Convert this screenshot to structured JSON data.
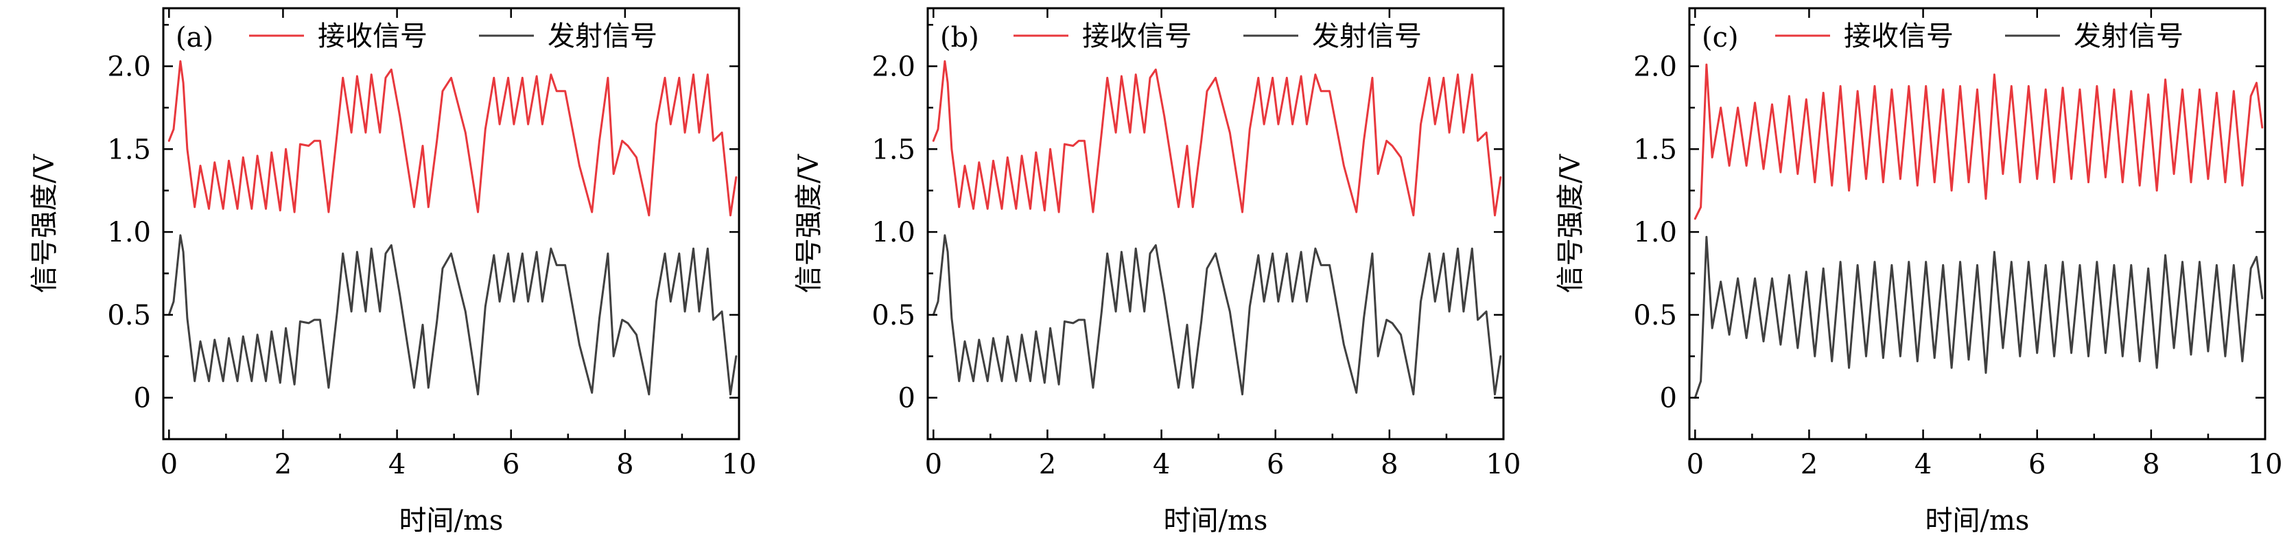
{
  "x_axis_label": "时间/ms",
  "y_axis_label": "信号强度/V",
  "legend": {
    "received": "接收信号",
    "transmitted": "发射信号"
  },
  "colors": {
    "received": "#e8383d",
    "transmitted": "#404040"
  },
  "chart_data": [
    {
      "type": "line",
      "panel_label": "(a)",
      "xlim": [
        -0.1,
        10
      ],
      "ylim": [
        -0.25,
        2.35
      ],
      "x_ticks": [
        "0",
        "2",
        "4",
        "6",
        "8",
        "10"
      ],
      "y_ticks": [
        "0",
        "0.5",
        "1.0",
        "1.5",
        "2.0"
      ],
      "legend_position": "top",
      "series": [
        {
          "name": "接收信号",
          "x": [
            0,
            0.08,
            0.2,
            0.25,
            0.32,
            0.45,
            0.55,
            0.7,
            0.8,
            0.95,
            1.05,
            1.2,
            1.3,
            1.45,
            1.55,
            1.7,
            1.8,
            1.95,
            2.05,
            2.2,
            2.3,
            2.45,
            2.55,
            2.65,
            2.8,
            2.95,
            3.05,
            3.2,
            3.3,
            3.45,
            3.55,
            3.7,
            3.8,
            3.9,
            4.05,
            4.3,
            4.45,
            4.55,
            4.7,
            4.8,
            4.95,
            5.2,
            5.42,
            5.55,
            5.7,
            5.8,
            5.95,
            6.05,
            6.2,
            6.3,
            6.45,
            6.55,
            6.7,
            6.8,
            6.95,
            7.2,
            7.42,
            7.55,
            7.7,
            7.8,
            7.95,
            8.05,
            8.2,
            8.42,
            8.55,
            8.7,
            8.8,
            8.95,
            9.05,
            9.2,
            9.3,
            9.45,
            9.55,
            9.7,
            9.85,
            9.95
          ],
          "values": [
            1.55,
            1.62,
            2.03,
            1.9,
            1.5,
            1.15,
            1.4,
            1.14,
            1.42,
            1.14,
            1.43,
            1.14,
            1.45,
            1.14,
            1.46,
            1.14,
            1.48,
            1.13,
            1.5,
            1.12,
            1.53,
            1.52,
            1.55,
            1.55,
            1.12,
            1.6,
            1.93,
            1.6,
            1.94,
            1.6,
            1.95,
            1.6,
            1.93,
            1.98,
            1.7,
            1.15,
            1.52,
            1.15,
            1.55,
            1.85,
            1.93,
            1.6,
            1.12,
            1.62,
            1.93,
            1.65,
            1.93,
            1.65,
            1.93,
            1.65,
            1.94,
            1.65,
            1.95,
            1.85,
            1.85,
            1.4,
            1.12,
            1.55,
            1.93,
            1.35,
            1.55,
            1.52,
            1.45,
            1.1,
            1.65,
            1.93,
            1.65,
            1.93,
            1.6,
            1.95,
            1.6,
            1.95,
            1.55,
            1.6,
            1.1,
            1.33
          ]
        },
        {
          "name": "发射信号",
          "x": [
            0,
            0.08,
            0.2,
            0.25,
            0.32,
            0.45,
            0.55,
            0.7,
            0.8,
            0.95,
            1.05,
            1.2,
            1.3,
            1.45,
            1.55,
            1.7,
            1.8,
            1.95,
            2.05,
            2.2,
            2.3,
            2.45,
            2.55,
            2.65,
            2.8,
            2.95,
            3.05,
            3.2,
            3.3,
            3.45,
            3.55,
            3.7,
            3.8,
            3.9,
            4.05,
            4.3,
            4.45,
            4.55,
            4.7,
            4.8,
            4.95,
            5.2,
            5.42,
            5.55,
            5.7,
            5.8,
            5.95,
            6.05,
            6.2,
            6.3,
            6.45,
            6.55,
            6.7,
            6.8,
            6.95,
            7.2,
            7.42,
            7.55,
            7.7,
            7.8,
            7.95,
            8.05,
            8.2,
            8.42,
            8.55,
            8.7,
            8.8,
            8.95,
            9.05,
            9.2,
            9.3,
            9.45,
            9.55,
            9.7,
            9.85,
            9.95
          ],
          "values": [
            0.5,
            0.58,
            0.98,
            0.88,
            0.48,
            0.1,
            0.34,
            0.1,
            0.35,
            0.1,
            0.36,
            0.1,
            0.37,
            0.1,
            0.38,
            0.1,
            0.4,
            0.09,
            0.42,
            0.08,
            0.46,
            0.45,
            0.47,
            0.47,
            0.06,
            0.52,
            0.87,
            0.52,
            0.88,
            0.52,
            0.9,
            0.52,
            0.87,
            0.92,
            0.62,
            0.06,
            0.44,
            0.06,
            0.46,
            0.78,
            0.87,
            0.52,
            0.02,
            0.55,
            0.86,
            0.58,
            0.87,
            0.58,
            0.87,
            0.58,
            0.88,
            0.58,
            0.9,
            0.8,
            0.8,
            0.32,
            0.03,
            0.48,
            0.87,
            0.25,
            0.47,
            0.45,
            0.38,
            0.02,
            0.58,
            0.87,
            0.58,
            0.87,
            0.52,
            0.9,
            0.52,
            0.9,
            0.47,
            0.52,
            0.02,
            0.25
          ]
        }
      ]
    },
    {
      "type": "line",
      "panel_label": "(b)",
      "xlim": [
        -0.1,
        10
      ],
      "ylim": [
        -0.25,
        2.35
      ],
      "x_ticks": [
        "0",
        "2",
        "4",
        "6",
        "8",
        "10"
      ],
      "y_ticks": [
        "0",
        "0.5",
        "1.0",
        "1.5",
        "2.0"
      ],
      "legend_position": "top",
      "series": [
        {
          "name": "接收信号",
          "x": [
            0,
            0.08,
            0.2,
            0.25,
            0.32,
            0.45,
            0.55,
            0.7,
            0.8,
            0.95,
            1.05,
            1.2,
            1.3,
            1.45,
            1.55,
            1.7,
            1.8,
            1.95,
            2.05,
            2.2,
            2.3,
            2.45,
            2.55,
            2.65,
            2.8,
            2.95,
            3.05,
            3.2,
            3.3,
            3.45,
            3.55,
            3.7,
            3.8,
            3.9,
            4.05,
            4.3,
            4.45,
            4.55,
            4.7,
            4.8,
            4.95,
            5.2,
            5.42,
            5.55,
            5.7,
            5.8,
            5.95,
            6.05,
            6.2,
            6.3,
            6.45,
            6.55,
            6.7,
            6.8,
            6.95,
            7.2,
            7.42,
            7.55,
            7.7,
            7.8,
            7.95,
            8.05,
            8.2,
            8.42,
            8.55,
            8.7,
            8.8,
            8.95,
            9.05,
            9.2,
            9.3,
            9.45,
            9.55,
            9.7,
            9.85,
            9.95
          ],
          "values": [
            1.55,
            1.62,
            2.03,
            1.9,
            1.5,
            1.15,
            1.4,
            1.14,
            1.42,
            1.14,
            1.43,
            1.14,
            1.45,
            1.14,
            1.46,
            1.14,
            1.48,
            1.13,
            1.5,
            1.12,
            1.53,
            1.52,
            1.55,
            1.55,
            1.12,
            1.6,
            1.93,
            1.6,
            1.94,
            1.6,
            1.95,
            1.6,
            1.93,
            1.98,
            1.7,
            1.15,
            1.52,
            1.15,
            1.55,
            1.85,
            1.93,
            1.6,
            1.12,
            1.62,
            1.93,
            1.65,
            1.93,
            1.65,
            1.93,
            1.65,
            1.94,
            1.65,
            1.95,
            1.85,
            1.85,
            1.4,
            1.12,
            1.55,
            1.93,
            1.35,
            1.55,
            1.52,
            1.45,
            1.1,
            1.65,
            1.93,
            1.65,
            1.93,
            1.6,
            1.95,
            1.6,
            1.95,
            1.55,
            1.6,
            1.1,
            1.33
          ]
        },
        {
          "name": "发射信号",
          "x": [
            0,
            0.08,
            0.2,
            0.25,
            0.32,
            0.45,
            0.55,
            0.7,
            0.8,
            0.95,
            1.05,
            1.2,
            1.3,
            1.45,
            1.55,
            1.7,
            1.8,
            1.95,
            2.05,
            2.2,
            2.3,
            2.45,
            2.55,
            2.65,
            2.8,
            2.95,
            3.05,
            3.2,
            3.3,
            3.45,
            3.55,
            3.7,
            3.8,
            3.9,
            4.05,
            4.3,
            4.45,
            4.55,
            4.7,
            4.8,
            4.95,
            5.2,
            5.42,
            5.55,
            5.7,
            5.8,
            5.95,
            6.05,
            6.2,
            6.3,
            6.45,
            6.55,
            6.7,
            6.8,
            6.95,
            7.2,
            7.42,
            7.55,
            7.7,
            7.8,
            7.95,
            8.05,
            8.2,
            8.42,
            8.55,
            8.7,
            8.8,
            8.95,
            9.05,
            9.2,
            9.3,
            9.45,
            9.55,
            9.7,
            9.85,
            9.95
          ],
          "values": [
            0.5,
            0.58,
            0.98,
            0.88,
            0.48,
            0.1,
            0.34,
            0.1,
            0.35,
            0.1,
            0.36,
            0.1,
            0.37,
            0.1,
            0.38,
            0.1,
            0.4,
            0.09,
            0.42,
            0.08,
            0.46,
            0.45,
            0.47,
            0.47,
            0.06,
            0.52,
            0.87,
            0.52,
            0.88,
            0.52,
            0.9,
            0.52,
            0.87,
            0.92,
            0.62,
            0.06,
            0.44,
            0.06,
            0.46,
            0.78,
            0.87,
            0.52,
            0.02,
            0.55,
            0.86,
            0.58,
            0.87,
            0.58,
            0.87,
            0.58,
            0.88,
            0.58,
            0.9,
            0.8,
            0.8,
            0.32,
            0.03,
            0.48,
            0.87,
            0.25,
            0.47,
            0.45,
            0.38,
            0.02,
            0.58,
            0.87,
            0.58,
            0.87,
            0.52,
            0.9,
            0.52,
            0.9,
            0.47,
            0.52,
            0.02,
            0.25
          ]
        }
      ]
    },
    {
      "type": "line",
      "panel_label": "(c)",
      "xlim": [
        -0.1,
        10
      ],
      "ylim": [
        -0.25,
        2.35
      ],
      "x_ticks": [
        "0",
        "2",
        "4",
        "6",
        "8",
        "10"
      ],
      "y_ticks": [
        "0",
        "0.5",
        "1.0",
        "1.5",
        "2.0"
      ],
      "legend_position": "top",
      "series": [
        {
          "name": "接收信号",
          "x": [
            0,
            0.1,
            0.2,
            0.3,
            0.45,
            0.6,
            0.75,
            0.9,
            1.05,
            1.2,
            1.35,
            1.5,
            1.65,
            1.8,
            1.95,
            2.1,
            2.25,
            2.4,
            2.55,
            2.7,
            2.85,
            3.0,
            3.15,
            3.3,
            3.45,
            3.6,
            3.75,
            3.9,
            4.05,
            4.2,
            4.35,
            4.5,
            4.65,
            4.8,
            4.95,
            5.1,
            5.25,
            5.4,
            5.55,
            5.7,
            5.85,
            6.0,
            6.15,
            6.3,
            6.45,
            6.6,
            6.75,
            6.9,
            7.05,
            7.2,
            7.35,
            7.5,
            7.65,
            7.8,
            7.95,
            8.1,
            8.25,
            8.4,
            8.55,
            8.7,
            8.85,
            9.0,
            9.15,
            9.3,
            9.45,
            9.6,
            9.75,
            9.85,
            9.95
          ],
          "values": [
            1.08,
            1.15,
            2.01,
            1.45,
            1.75,
            1.4,
            1.75,
            1.4,
            1.78,
            1.38,
            1.77,
            1.36,
            1.82,
            1.35,
            1.8,
            1.3,
            1.84,
            1.28,
            1.88,
            1.25,
            1.85,
            1.32,
            1.88,
            1.3,
            1.86,
            1.32,
            1.88,
            1.28,
            1.88,
            1.3,
            1.86,
            1.25,
            1.88,
            1.3,
            1.86,
            1.2,
            1.95,
            1.35,
            1.88,
            1.3,
            1.88,
            1.32,
            1.86,
            1.3,
            1.87,
            1.32,
            1.86,
            1.3,
            1.88,
            1.33,
            1.86,
            1.3,
            1.85,
            1.28,
            1.83,
            1.25,
            1.92,
            1.35,
            1.86,
            1.3,
            1.86,
            1.32,
            1.84,
            1.3,
            1.85,
            1.28,
            1.82,
            1.9,
            1.63
          ]
        },
        {
          "name": "发射信号",
          "x": [
            0,
            0.1,
            0.2,
            0.3,
            0.45,
            0.6,
            0.75,
            0.9,
            1.05,
            1.2,
            1.35,
            1.5,
            1.65,
            1.8,
            1.95,
            2.1,
            2.25,
            2.4,
            2.55,
            2.7,
            2.85,
            3.0,
            3.15,
            3.3,
            3.45,
            3.6,
            3.75,
            3.9,
            4.05,
            4.2,
            4.35,
            4.5,
            4.65,
            4.8,
            4.95,
            5.1,
            5.25,
            5.4,
            5.55,
            5.7,
            5.85,
            6.0,
            6.15,
            6.3,
            6.45,
            6.6,
            6.75,
            6.9,
            7.05,
            7.2,
            7.35,
            7.5,
            7.65,
            7.8,
            7.95,
            8.1,
            8.25,
            8.4,
            8.55,
            8.7,
            8.85,
            9.0,
            9.15,
            9.3,
            9.45,
            9.6,
            9.75,
            9.85,
            9.95
          ],
          "values": [
            0.0,
            0.1,
            0.97,
            0.42,
            0.7,
            0.38,
            0.72,
            0.36,
            0.72,
            0.34,
            0.72,
            0.32,
            0.74,
            0.3,
            0.76,
            0.25,
            0.78,
            0.22,
            0.82,
            0.18,
            0.8,
            0.25,
            0.82,
            0.24,
            0.8,
            0.25,
            0.82,
            0.22,
            0.82,
            0.24,
            0.8,
            0.18,
            0.82,
            0.23,
            0.8,
            0.15,
            0.88,
            0.3,
            0.82,
            0.25,
            0.82,
            0.27,
            0.8,
            0.25,
            0.82,
            0.27,
            0.8,
            0.25,
            0.82,
            0.27,
            0.8,
            0.25,
            0.8,
            0.22,
            0.78,
            0.18,
            0.86,
            0.3,
            0.82,
            0.26,
            0.82,
            0.28,
            0.8,
            0.25,
            0.8,
            0.22,
            0.78,
            0.85,
            0.6
          ]
        }
      ]
    }
  ]
}
